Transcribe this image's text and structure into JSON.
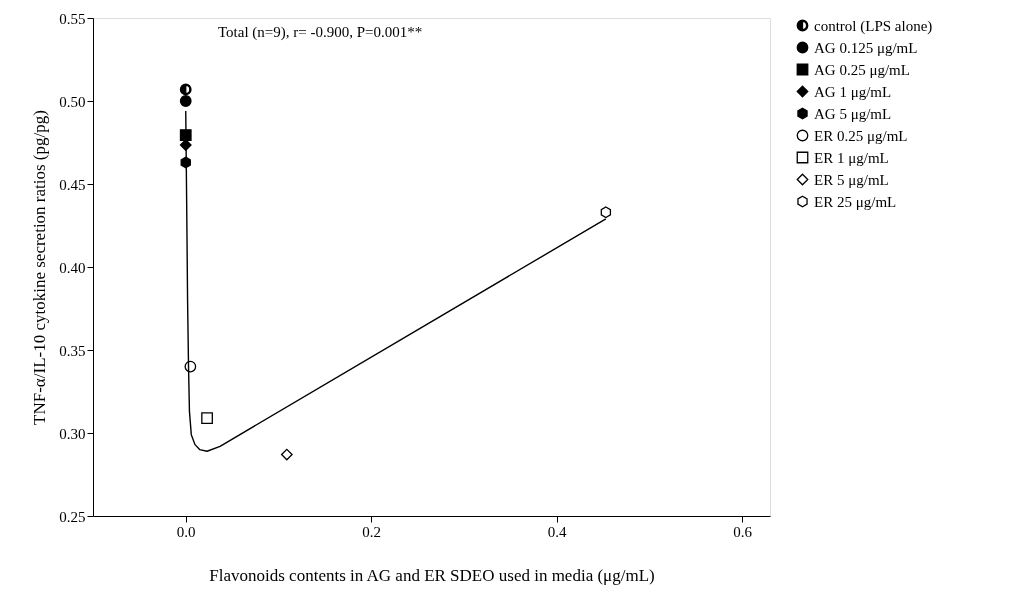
{
  "chart_data": {
    "type": "scatter",
    "xlabel": "Flavonoids contents in AG and ER SDEO used in media (μg/mL)",
    "ylabel": "TNF-α/IL-10 cytokine secretion ratios (pg/pg)",
    "annotations": [
      "Total (n=9), r= -0.900, P=0.001**"
    ],
    "xlim": [
      -0.1,
      0.63
    ],
    "xticks": [
      {
        "value": 0,
        "label": "0.0"
      },
      0.2,
      0.4,
      0.6
    ],
    "ylim": [
      0.25,
      0.55
    ],
    "yticks": [
      0.25,
      {
        "value": 0.3,
        "label": "0.30"
      },
      0.35,
      {
        "value": 0.4,
        "label": "0.40"
      },
      0.45,
      {
        "value": 0.5,
        "label": "0.50"
      },
      0.55
    ],
    "grid": false,
    "legend": "top right",
    "series": [
      {
        "name": "control (LPS alone)",
        "marker": "half-circle",
        "color": "#000000",
        "x": [
          0
        ],
        "values": [
          0.507
        ]
      },
      {
        "name": "AG 0.125 μg/mL",
        "marker": "circle",
        "color": "#000000",
        "x": [
          0
        ],
        "values": [
          0.5
        ]
      },
      {
        "name": "AG 0.25 μg/mL",
        "marker": "square",
        "color": "#000000",
        "x": [
          0
        ],
        "values": [
          0.4795
        ]
      },
      {
        "name": "AG 1 μg/mL",
        "marker": "diamond",
        "color": "#000000",
        "x": [
          0
        ],
        "values": [
          0.4735
        ]
      },
      {
        "name": "AG 5 μg/mL",
        "color": "#000000",
        "x": [
          0
        ],
        "values": [
          0.463
        ]
      },
      {
        "name": "ER 0.25 μg/mL",
        "marker": "circle-open",
        "color": "#000000",
        "x": [
          0.005
        ],
        "values": [
          0.34
        ]
      },
      {
        "name": "ER 1  μg/mL",
        "marker": "square-open",
        "color": "#000000",
        "x": [
          0.023
        ],
        "values": [
          0.309
        ]
      },
      {
        "name": "ER 5 μg/mL",
        "marker": "diamond-open",
        "color": "#000000",
        "x": [
          0.109
        ],
        "values": [
          0.287
        ]
      },
      {
        "name": "ER 25 μg/mL",
        "color": "#000000",
        "x": [
          0.453
        ],
        "values": [
          0.433
        ]
      },
      {
        "type": "line",
        "color": "#000000",
        "marker": "none",
        "line_style": "solid",
        "x": [
          0,
          0.001,
          0.002,
          0.003,
          0.004,
          0.006,
          0.01,
          0.015,
          0.023,
          0.037,
          0.453
        ],
        "values": [
          0.494,
          0.439,
          0.379,
          0.34,
          0.313,
          0.299,
          0.293,
          0.29,
          0.289,
          0.292,
          0.429
        ]
      }
    ]
  }
}
